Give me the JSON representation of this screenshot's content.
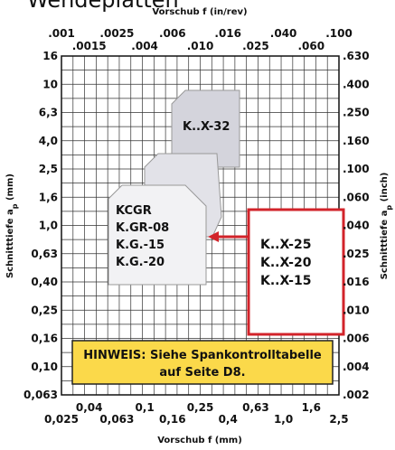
{
  "header": {
    "title": "Wendeplatten"
  },
  "axes": {
    "top": {
      "title": "Vorschub f (in/rev)",
      "labels": [
        ".001",
        ".0015",
        ".0025",
        ".004",
        ".006",
        ".010",
        ".016",
        ".025",
        ".040",
        ".060",
        ".100"
      ]
    },
    "bottom": {
      "title": "Vorschub f (mm)",
      "labels": [
        "0,025",
        "0,04",
        "0,063",
        "0,1",
        "0,16",
        "0,25",
        "0,4",
        "0,63",
        "1,0",
        "1,6",
        "2,5"
      ]
    },
    "left": {
      "title": "Schnitttiefe a",
      "sub": "p",
      "unit": " (mm)",
      "labels": [
        "16",
        "10",
        "6,3",
        "4,0",
        "2,5",
        "1,6",
        "1,0",
        "0,63",
        "0,40",
        "0,25",
        "0,16",
        "0,10",
        "0,063"
      ]
    },
    "right": {
      "title": "Schnitttiefe a",
      "sub": "p",
      "unit": " (inch)",
      "labels": [
        ".630",
        ".400",
        ".250",
        ".160",
        ".100",
        ".060",
        ".040",
        ".025",
        ".016",
        ".010",
        ".006",
        ".004",
        ".002"
      ]
    }
  },
  "inserts": {
    "back": "K..X-32",
    "front": [
      "KCGR",
      "K.GR-08",
      "K.G.-15",
      "K.G.-20"
    ],
    "callout": [
      "K..X-25",
      "K..X-20",
      "K..X-15"
    ]
  },
  "note": [
    "HINWEIS: Siehe Spankontrolltabelle",
    "auf Seite D8."
  ]
}
